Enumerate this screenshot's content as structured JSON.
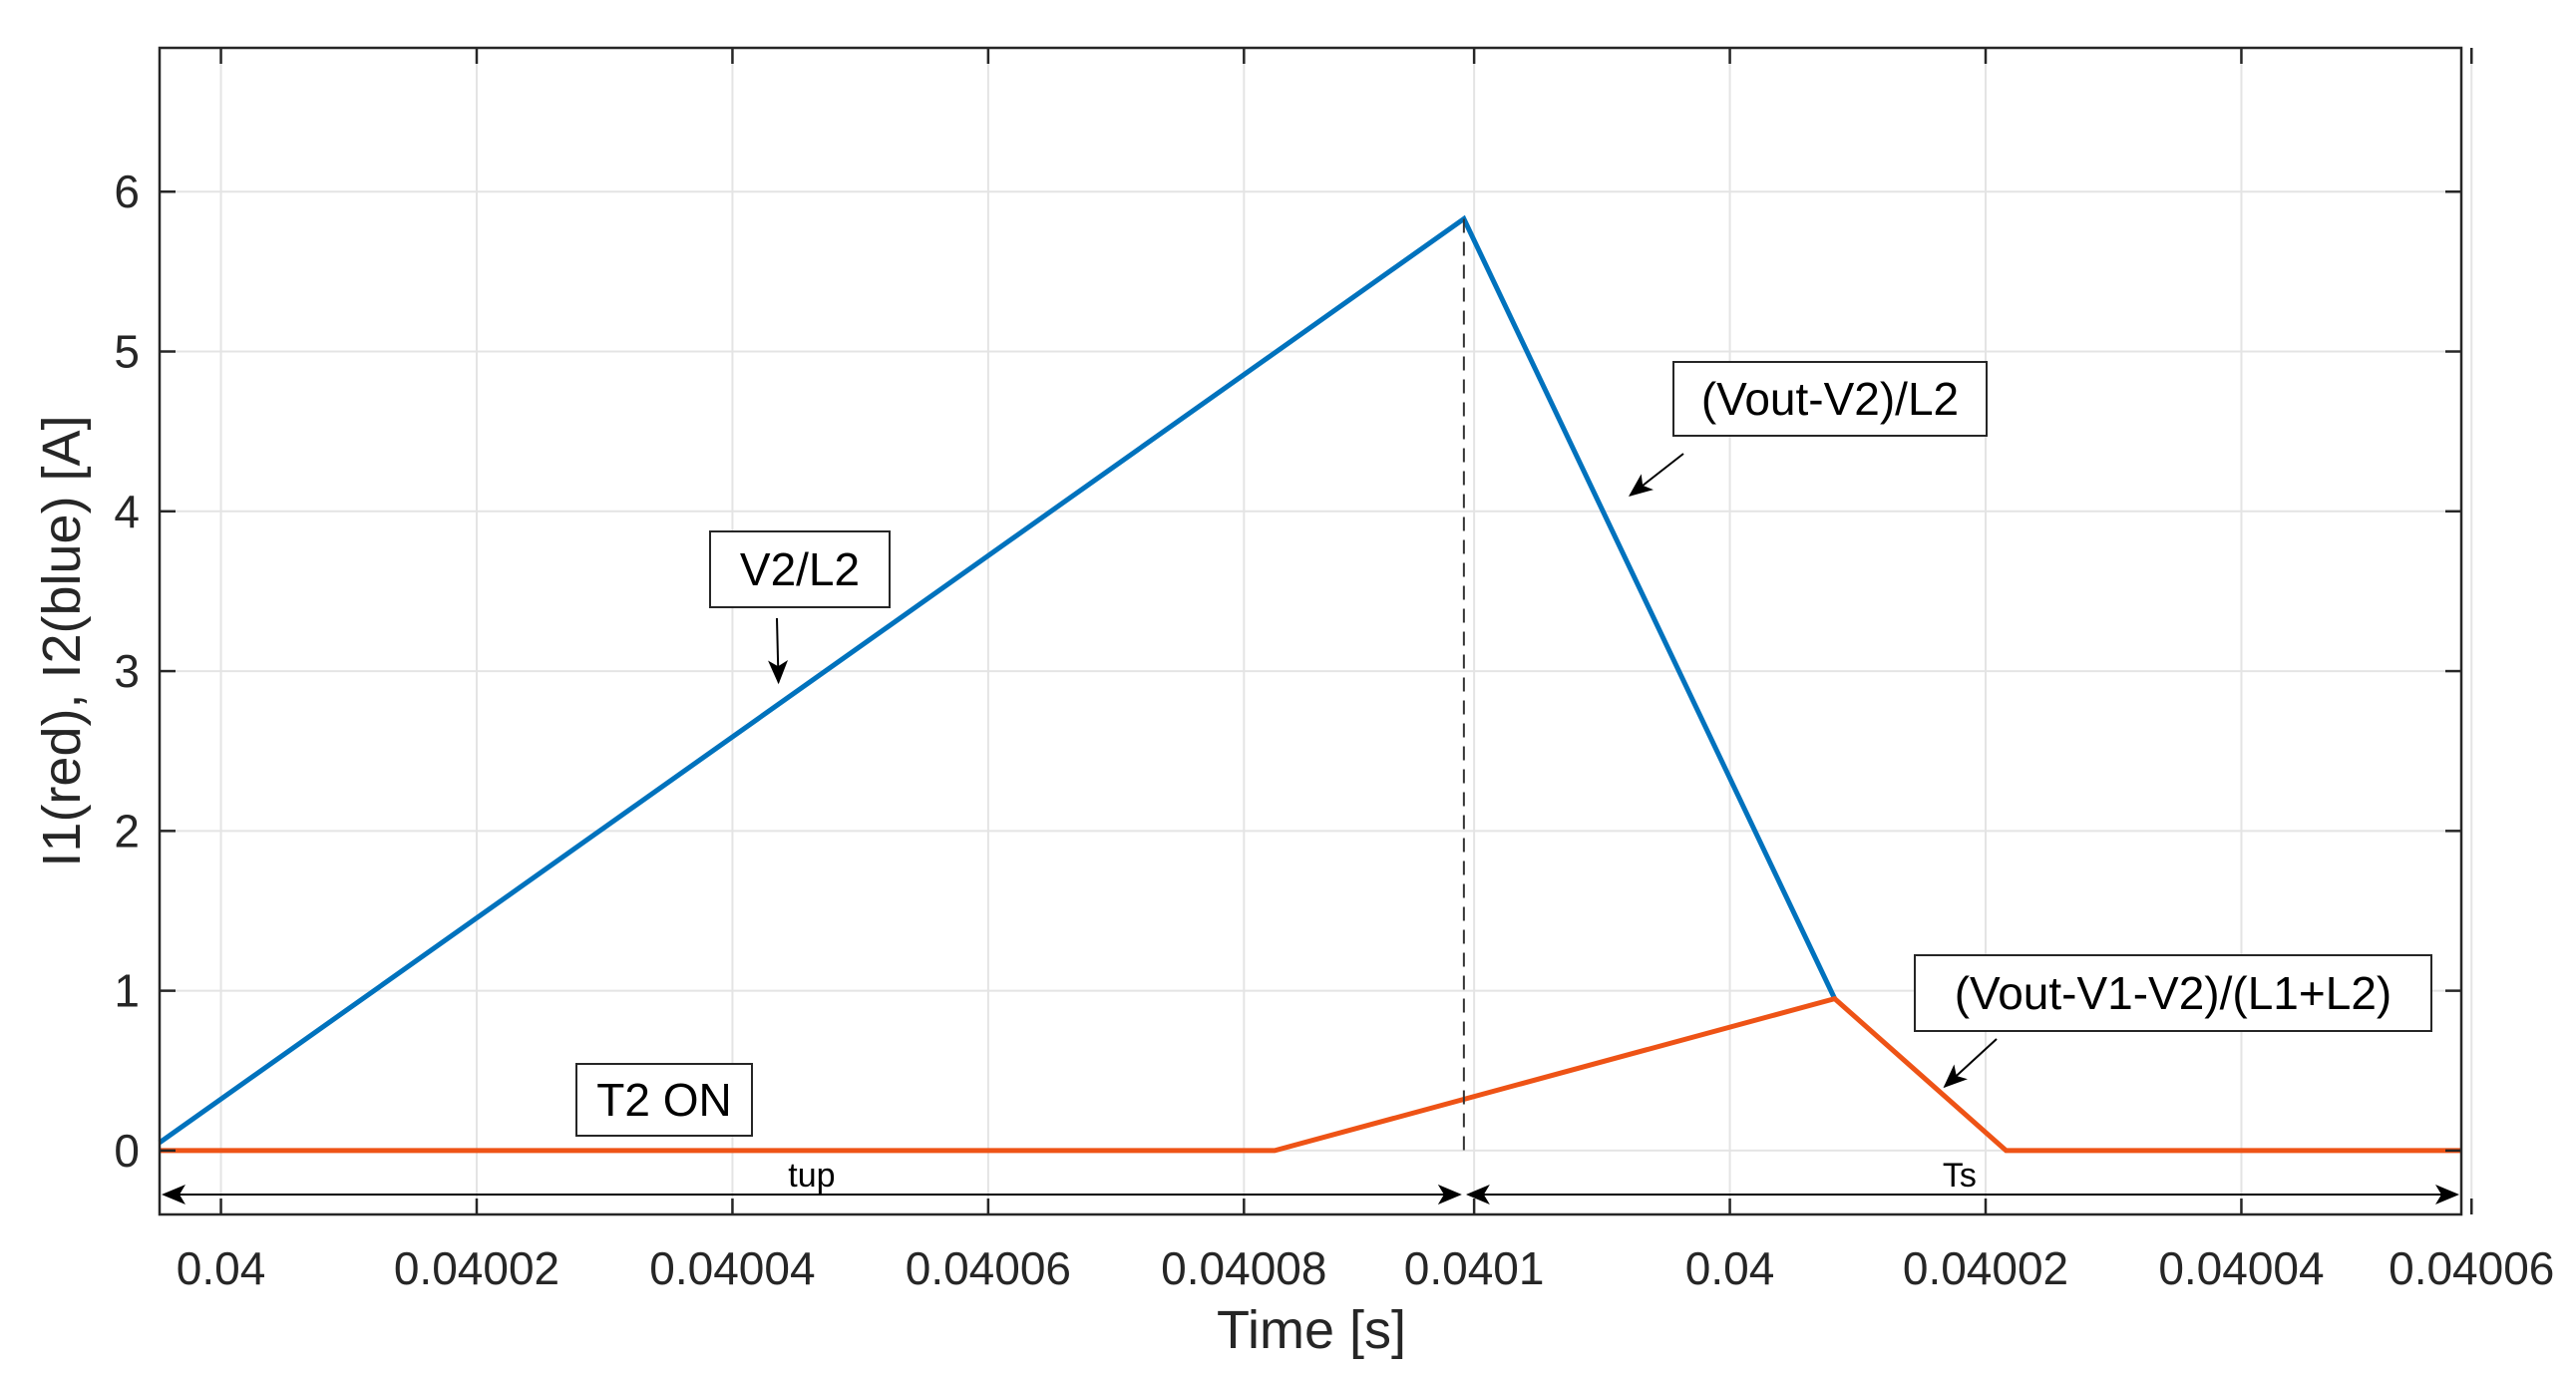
{
  "chart_data": {
    "type": "line",
    "xlabel": "Time [s]",
    "ylabel": "I1(red), I2(blue) [A]",
    "xlim": [
      0,
      9e-05
    ],
    "ylim": [
      -0.4,
      6.9
    ],
    "grid": true,
    "x_ticks": [
      {
        "value": 2.4e-06,
        "label": "0.04"
      },
      {
        "value": 1.24e-05,
        "label": "0.04002"
      },
      {
        "value": 2.24e-05,
        "label": "0.04004"
      },
      {
        "value": 3.24e-05,
        "label": "0.04006"
      },
      {
        "value": 4.24e-05,
        "label": "0.04008"
      },
      {
        "value": 5.14e-05,
        "label": "0.0401"
      },
      {
        "value": 6.14e-05,
        "label": "0.04"
      },
      {
        "value": 7.14e-05,
        "label": "0.04002"
      },
      {
        "value": 8.14e-05,
        "label": "0.04004"
      },
      {
        "value": 9.04e-05,
        "label": "0.04006"
      }
    ],
    "y_ticks": [
      0,
      1,
      2,
      3,
      4,
      5,
      6
    ],
    "series": [
      {
        "color": "#0072BD",
        "x": [
          0.0,
          5.1e-05,
          6.55e-05
        ],
        "y": [
          0.05,
          5.83,
          0.95
        ]
      },
      {
        "color": "#EE5316",
        "x": [
          0.0,
          4.36e-05,
          6.55e-05,
          7.22e-05,
          9e-05
        ],
        "y": [
          0.0,
          0.0,
          0.95,
          0.0,
          0.0
        ]
      }
    ],
    "annotations": [
      {
        "text": "V2/L2",
        "arrow_to": {
          "x": 2.42e-05,
          "y": 2.93
        }
      },
      {
        "text": "(Vout-V2)/L2",
        "arrow_to": {
          "x": 5.75e-05,
          "y": 4.1
        }
      },
      {
        "text": "(Vout-V1-V2)/(L1+L2)",
        "arrow_to": {
          "x": 6.98e-05,
          "y": 0.4
        }
      },
      {
        "text": "T2 ON"
      }
    ],
    "marker_line": {
      "x": 5.1e-05,
      "y_from": 0.0,
      "y_to": 5.83
    },
    "spans": [
      {
        "label": "tup",
        "x_from": 0.0,
        "x_to": 5.1e-05
      },
      {
        "label": "Ts",
        "x_from": 5.1e-05,
        "x_to": 9e-05
      }
    ]
  }
}
